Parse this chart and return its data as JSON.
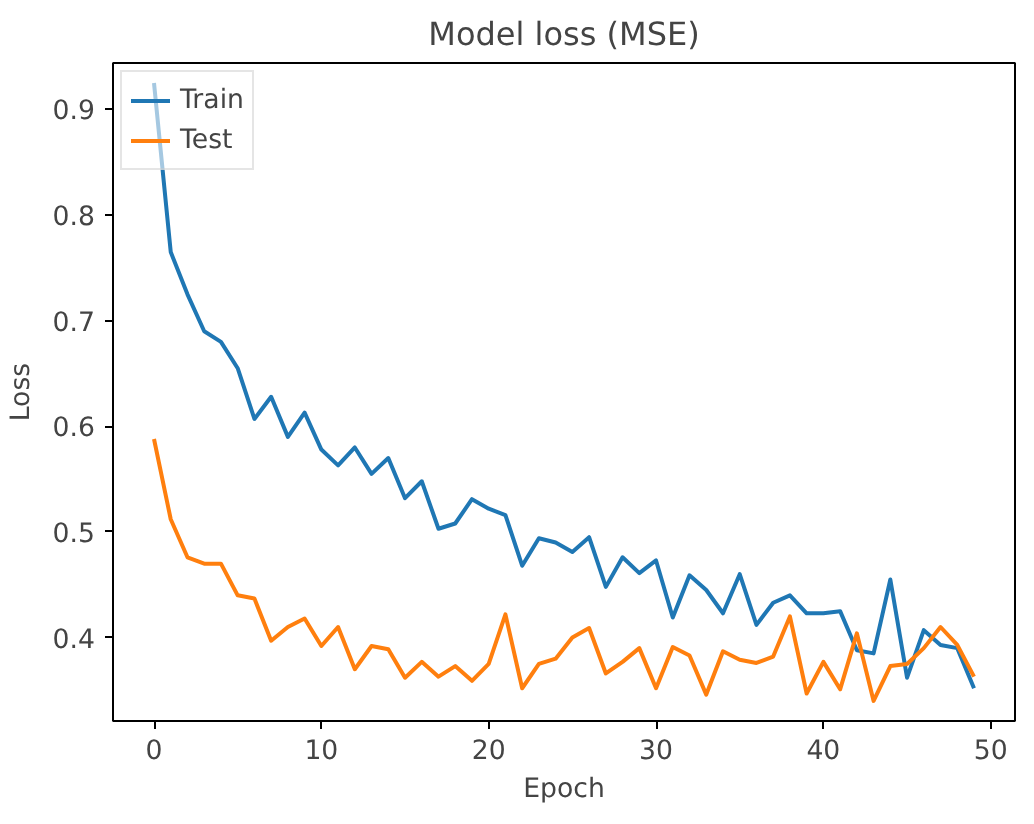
{
  "chart_data": {
    "type": "line",
    "title": "Model loss (MSE)",
    "xlabel": "Epoch",
    "ylabel": "Loss",
    "x": [
      0,
      1,
      2,
      3,
      4,
      5,
      6,
      7,
      8,
      9,
      10,
      11,
      12,
      13,
      14,
      15,
      16,
      17,
      18,
      19,
      20,
      21,
      22,
      23,
      24,
      25,
      26,
      27,
      28,
      29,
      30,
      31,
      32,
      33,
      34,
      35,
      36,
      37,
      38,
      39,
      40,
      41,
      42,
      43,
      44,
      45,
      46,
      47,
      48,
      49
    ],
    "series": [
      {
        "name": "Train",
        "color": "#1f77b4",
        "values": [
          0.925,
          0.765,
          0.725,
          0.69,
          0.68,
          0.655,
          0.607,
          0.628,
          0.59,
          0.613,
          0.578,
          0.563,
          0.58,
          0.555,
          0.57,
          0.532,
          0.548,
          0.503,
          0.508,
          0.531,
          0.522,
          0.516,
          0.468,
          0.494,
          0.49,
          0.481,
          0.495,
          0.448,
          0.476,
          0.461,
          0.473,
          0.419,
          0.459,
          0.445,
          0.423,
          0.46,
          0.412,
          0.433,
          0.44,
          0.423,
          0.423,
          0.425,
          0.388,
          0.385,
          0.455,
          0.362,
          0.407,
          0.393,
          0.39,
          0.352
        ]
      },
      {
        "name": "Test",
        "color": "#ff7f0e",
        "values": [
          0.588,
          0.512,
          0.476,
          0.47,
          0.47,
          0.44,
          0.437,
          0.397,
          0.41,
          0.418,
          0.392,
          0.41,
          0.37,
          0.392,
          0.389,
          0.362,
          0.377,
          0.363,
          0.373,
          0.359,
          0.375,
          0.422,
          0.352,
          0.375,
          0.38,
          0.4,
          0.409,
          0.366,
          0.377,
          0.39,
          0.352,
          0.391,
          0.383,
          0.346,
          0.387,
          0.379,
          0.376,
          0.382,
          0.42,
          0.347,
          0.377,
          0.351,
          0.404,
          0.34,
          0.373,
          0.375,
          0.39,
          0.41,
          0.393,
          0.363
        ]
      }
    ],
    "xlim": [
      -2.45,
      51.45
    ],
    "ylim": [
      0.321,
      0.944
    ],
    "xticks": [
      0,
      10,
      20,
      30,
      40,
      50
    ],
    "yticks": [
      0.4,
      0.5,
      0.6,
      0.7,
      0.8,
      0.9
    ],
    "grid": false,
    "legend": "top left",
    "line_style": "solid",
    "marker": "none"
  }
}
